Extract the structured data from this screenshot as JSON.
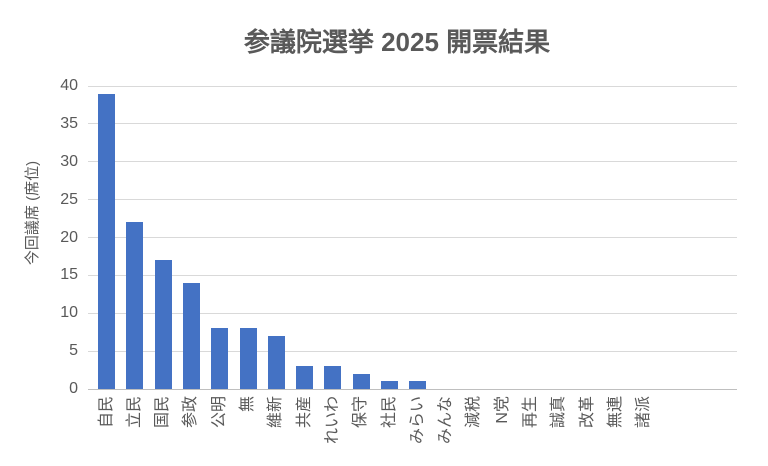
{
  "chart_data": {
    "type": "bar",
    "title": "参議院選挙 2025 開票結果",
    "xlabel": "",
    "ylabel": "今回議席 (席位)",
    "categories": [
      "自民",
      "立民",
      "国民",
      "参政",
      "公明",
      "無",
      "維新",
      "共産",
      "れいわ",
      "保守",
      "社民",
      "みらい",
      "みんな",
      "減税",
      "N党",
      "再生",
      "誠真",
      "改革",
      "無連",
      "諸派"
    ],
    "values": [
      39,
      22,
      17,
      14,
      8,
      8,
      7,
      3,
      3,
      2,
      1,
      1,
      0,
      0,
      0,
      0,
      0,
      0,
      0,
      0
    ],
    "ylim": [
      0,
      40
    ],
    "ytick_step": 5,
    "grid": true,
    "legend": false,
    "bar_color": "#4472C4",
    "text_color": "#595959",
    "gridline_color": "#D9D9D9",
    "axisline_color": "#BFBFBF",
    "background_color": "#FFFFFF"
  }
}
